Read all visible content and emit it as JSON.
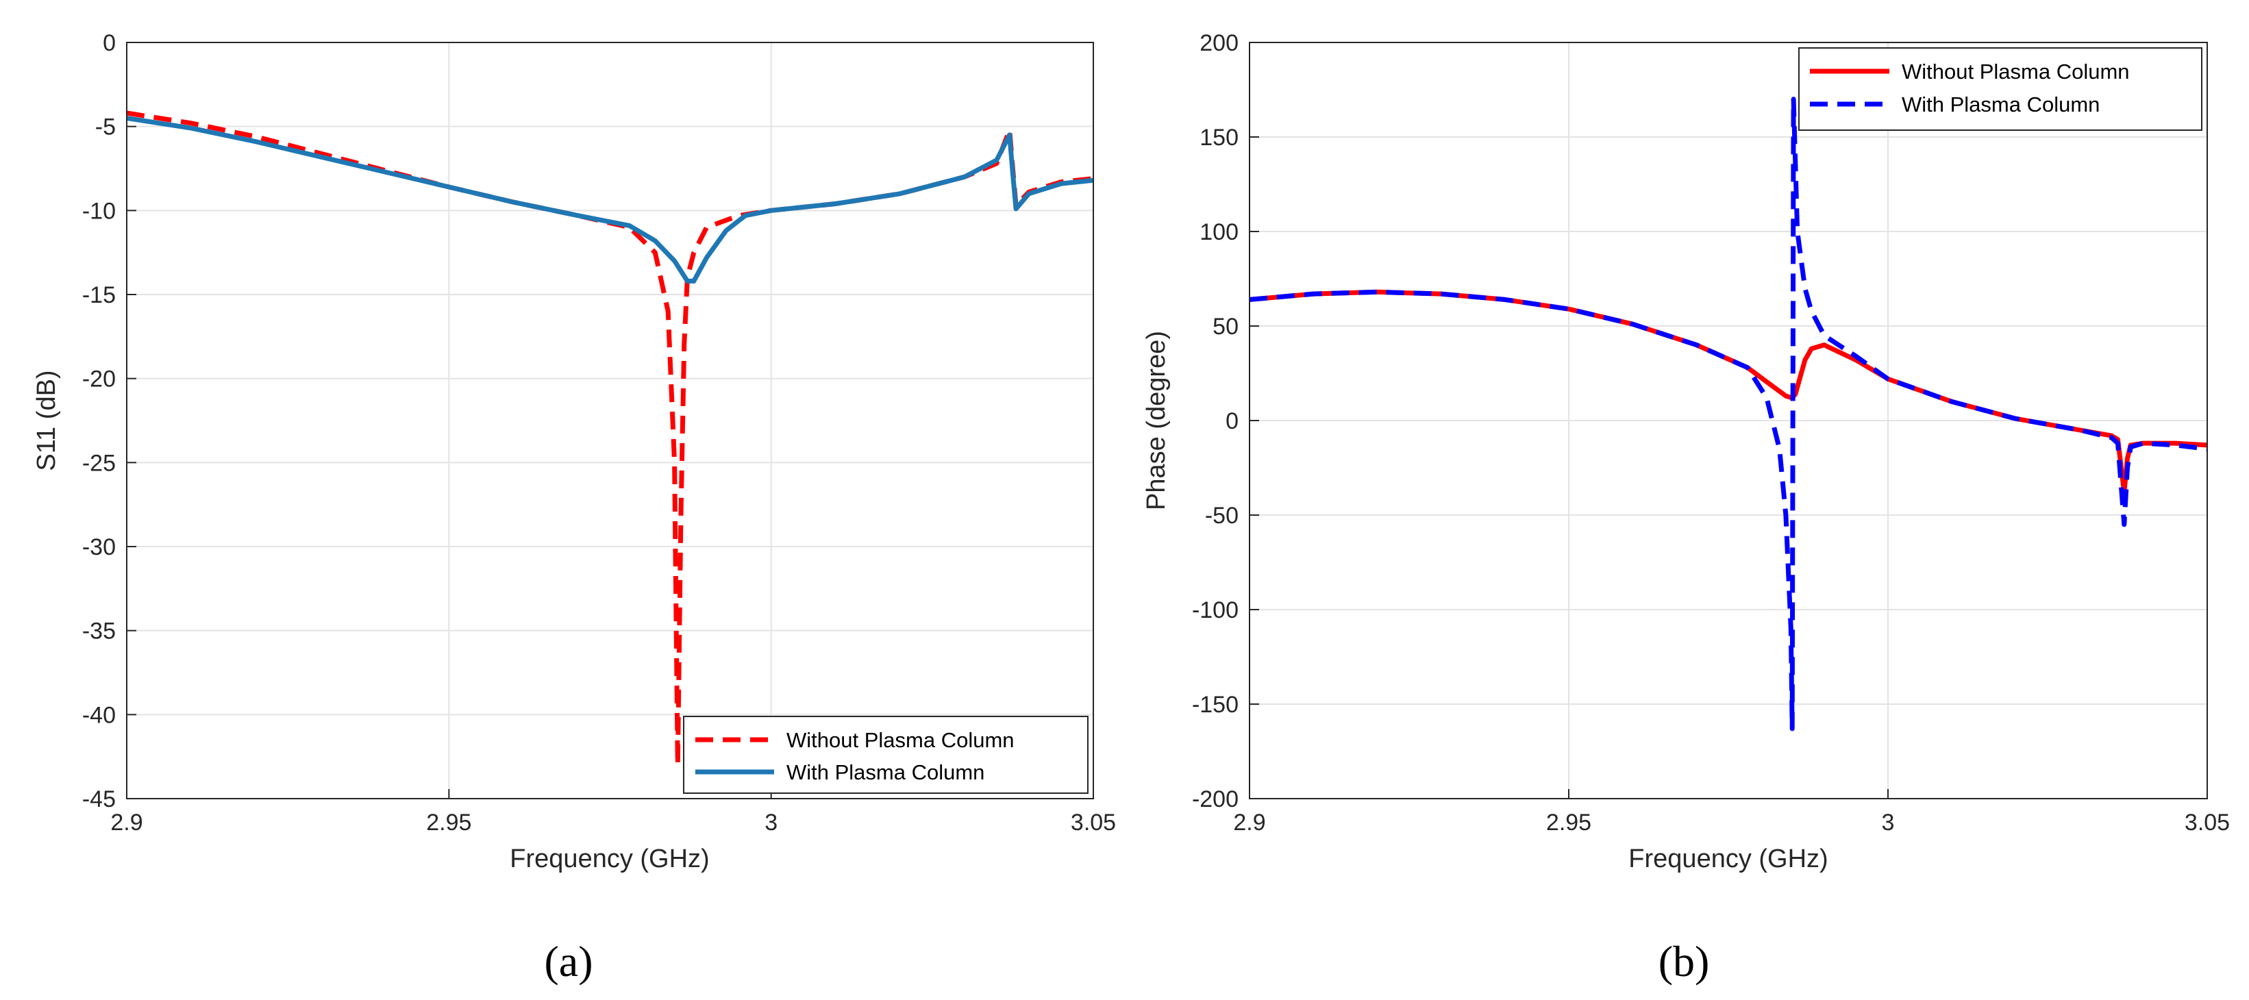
{
  "chart_data": [
    {
      "type": "line",
      "panel_label": "(a)",
      "xlabel": "Frequency (GHz)",
      "ylabel": "S11 (dB)",
      "xlim": [
        2.9,
        3.05
      ],
      "ylim": [
        -45,
        0
      ],
      "xticks": [
        2.9,
        2.95,
        3,
        3.05
      ],
      "xtick_labels": [
        "2.9",
        "2.95",
        "3",
        "3.05"
      ],
      "yticks": [
        0,
        -5,
        -10,
        -15,
        -20,
        -25,
        -30,
        -35,
        -40,
        -45
      ],
      "ytick_labels": [
        "0",
        "-5",
        "-10",
        "-15",
        "-20",
        "-25",
        "-30",
        "-35",
        "-40",
        "-45"
      ],
      "grid": true,
      "legend_position": "bottom-right",
      "series": [
        {
          "name": "Without Plasma Column",
          "color": "#ff0000",
          "style": "dashed",
          "x": [
            2.9,
            2.91,
            2.92,
            2.93,
            2.94,
            2.95,
            2.96,
            2.97,
            2.978,
            2.982,
            2.984,
            2.985,
            2.9855,
            2.986,
            2.9865,
            2.987,
            2.988,
            2.99,
            2.995,
            3.0,
            3.01,
            3.02,
            3.03,
            3.035,
            3.037,
            3.0375,
            3.038,
            3.04,
            3.045,
            3.05
          ],
          "y": [
            -4.2,
            -4.8,
            -5.6,
            -6.6,
            -7.6,
            -8.6,
            -9.5,
            -10.3,
            -11.0,
            -12.5,
            -16,
            -25,
            -43,
            -28,
            -18,
            -14,
            -12.5,
            -11.0,
            -10.3,
            -10.0,
            -9.6,
            -9.0,
            -8.0,
            -7.2,
            -5.2,
            -7.5,
            -9.7,
            -8.9,
            -8.3,
            -8.1
          ]
        },
        {
          "name": "With Plasma Column",
          "color": "#1f77b4",
          "style": "solid",
          "x": [
            2.9,
            2.91,
            2.92,
            2.93,
            2.94,
            2.95,
            2.96,
            2.97,
            2.978,
            2.982,
            2.985,
            2.987,
            2.988,
            2.99,
            2.993,
            2.996,
            3.0,
            3.01,
            3.02,
            3.03,
            3.035,
            3.037,
            3.0375,
            3.038,
            3.04,
            3.045,
            3.05
          ],
          "y": [
            -4.5,
            -5.1,
            -5.9,
            -6.8,
            -7.7,
            -8.6,
            -9.5,
            -10.3,
            -10.9,
            -11.8,
            -13.0,
            -14.2,
            -14.2,
            -12.8,
            -11.2,
            -10.3,
            -10.0,
            -9.6,
            -9.0,
            -8.0,
            -7.0,
            -5.5,
            -7.8,
            -9.9,
            -9.0,
            -8.4,
            -8.2
          ]
        }
      ]
    },
    {
      "type": "line",
      "panel_label": "(b)",
      "xlabel": "Frequency (GHz)",
      "ylabel": "Phase (degree)",
      "xlim": [
        2.9,
        3.05
      ],
      "ylim": [
        -200,
        200
      ],
      "xticks": [
        2.9,
        2.95,
        3,
        3.05
      ],
      "xtick_labels": [
        "2.9",
        "2.95",
        "3",
        "3.05"
      ],
      "yticks": [
        200,
        150,
        100,
        50,
        0,
        -50,
        -100,
        -150,
        -200
      ],
      "ytick_labels": [
        "200",
        "150",
        "100",
        "50",
        "0",
        "-50",
        "-100",
        "-150",
        "-200"
      ],
      "grid": true,
      "legend_position": "top-right",
      "series": [
        {
          "name": "Without Plasma Column",
          "color": "#ff0000",
          "style": "solid",
          "x": [
            2.9,
            2.91,
            2.92,
            2.93,
            2.94,
            2.95,
            2.96,
            2.97,
            2.978,
            2.982,
            2.984,
            2.985,
            2.9855,
            2.986,
            2.987,
            2.988,
            2.99,
            2.995,
            3.0,
            3.01,
            3.02,
            3.03,
            3.035,
            3.036,
            3.037,
            3.0375,
            3.038,
            3.04,
            3.045,
            3.05
          ],
          "y": [
            64,
            67,
            68,
            67,
            64,
            59,
            51,
            40,
            28,
            18,
            13,
            12,
            14,
            20,
            32,
            38,
            40,
            32,
            22,
            10,
            1,
            -5,
            -8,
            -10,
            -38,
            -20,
            -13,
            -12,
            -12,
            -13
          ]
        },
        {
          "name": "With Plasma Column",
          "color": "#0000ff",
          "style": "dashed",
          "x": [
            2.9,
            2.91,
            2.92,
            2.93,
            2.94,
            2.95,
            2.96,
            2.97,
            2.978,
            2.981,
            2.983,
            2.984,
            2.9848,
            2.985,
            2.9852,
            2.9858,
            2.987,
            2.988,
            2.99,
            2.995,
            3.0,
            3.01,
            3.02,
            3.03,
            3.035,
            3.036,
            3.037,
            3.0375,
            3.038,
            3.04,
            3.045,
            3.05
          ],
          "y": [
            64,
            67,
            68,
            67,
            64,
            59,
            51,
            40,
            28,
            12,
            -15,
            -50,
            -110,
            -163,
            170,
            100,
            70,
            58,
            45,
            34,
            22,
            10,
            1,
            -5,
            -9,
            -12,
            -55,
            -25,
            -14,
            -12,
            -13,
            -15
          ]
        }
      ]
    }
  ]
}
